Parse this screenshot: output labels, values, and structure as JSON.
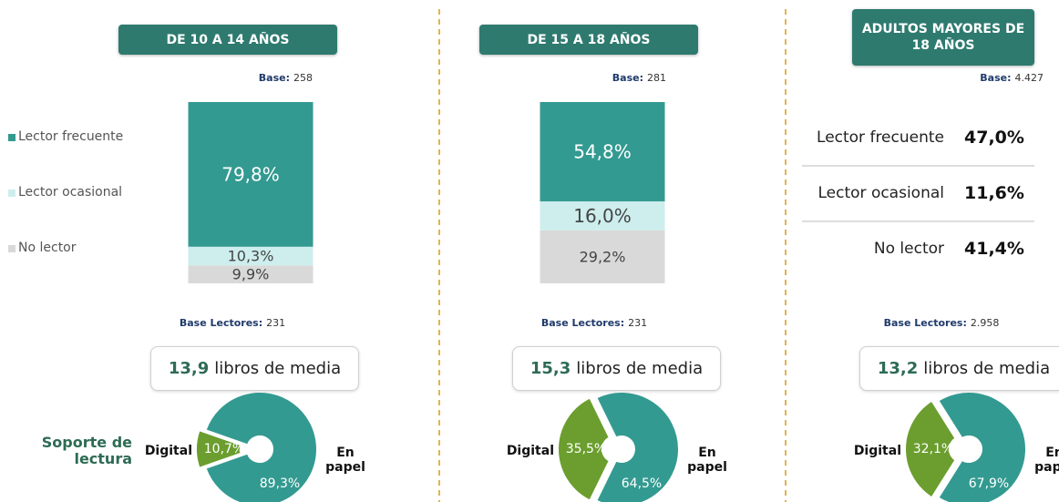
{
  "chart_data": [
    {
      "type": "stacked-bar",
      "categories": [
        "DE 10 A 14 AÑOS",
        "DE 15 A 18 AÑOS"
      ],
      "base_label": "Base:",
      "bases": [
        "258",
        "281"
      ],
      "ylim": [
        0,
        100
      ],
      "series": [
        {
          "name": "Lector frecuente",
          "color": "#339a91",
          "values": [
            79.8,
            54.8
          ],
          "value_labels": [
            "79,8%",
            "54,8%"
          ]
        },
        {
          "name": "Lector ocasional",
          "color": "#cdeeed",
          "values": [
            10.3,
            16.0
          ],
          "value_labels": [
            "10,3%",
            "16,0%"
          ]
        },
        {
          "name": "No lector",
          "color": "#d9d9d9",
          "values": [
            9.9,
            29.2
          ],
          "value_labels": [
            "9,9%",
            "29,2%"
          ]
        }
      ]
    },
    {
      "type": "table",
      "title": "ADULTOS MAYORES DE 18 AÑOS",
      "base_label": "Base:",
      "base": "4.427",
      "rows": [
        [
          "Lector frecuente",
          "47,0%"
        ],
        [
          "Lector ocasional",
          "11,6%"
        ],
        [
          "No lector",
          "41,4%"
        ]
      ]
    },
    {
      "type": "pie",
      "label": "Soporte de lectura",
      "base_label": "Base Lectores:",
      "base": "231",
      "mean": "13,9",
      "mean_text": "libros de media",
      "categories": [
        "Digital",
        "En papel"
      ],
      "colors": [
        "#6b9e2e",
        "#339a91"
      ],
      "values": [
        10.7,
        89.3
      ],
      "value_labels": [
        "10,7%",
        "89,3%"
      ]
    },
    {
      "type": "pie",
      "base_label": "Base Lectores:",
      "base": "231",
      "mean": "15,3",
      "mean_text": "libros de media",
      "categories": [
        "Digital",
        "En papel"
      ],
      "colors": [
        "#6b9e2e",
        "#339a91"
      ],
      "values": [
        35.5,
        64.5
      ],
      "value_labels": [
        "35,5%",
        "64,5%"
      ]
    },
    {
      "type": "pie",
      "base_label": "Base Lectores:",
      "base": "2.958",
      "mean": "13,2",
      "mean_text": "libros de media",
      "categories": [
        "Digital",
        "En papel"
      ],
      "colors": [
        "#6b9e2e",
        "#339a91"
      ],
      "values": [
        32.1,
        67.9
      ],
      "value_labels": [
        "32,1%",
        "67,9%"
      ]
    }
  ]
}
